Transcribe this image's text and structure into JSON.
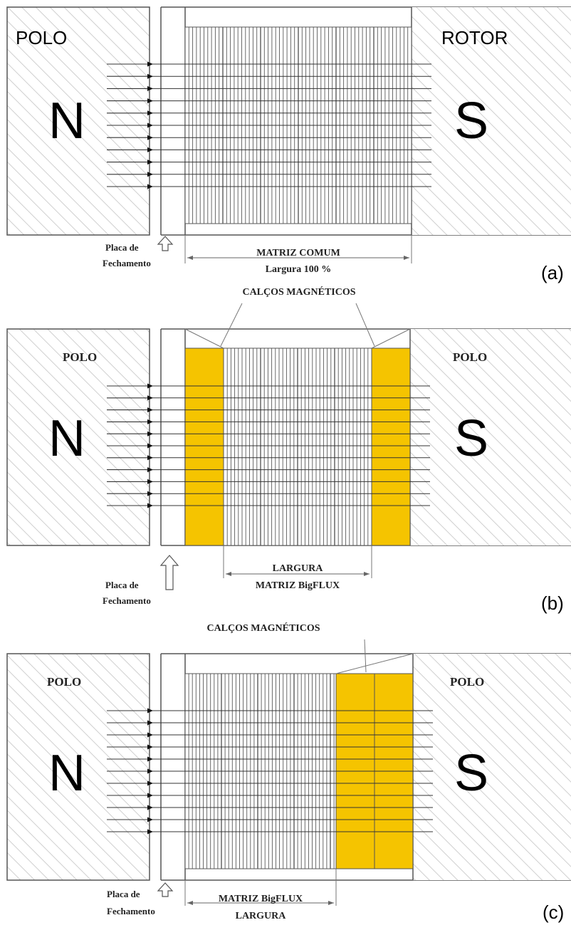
{
  "colors": {
    "pole_hatch": "#cccccc",
    "matrix_lines": "#555555",
    "magnetic_wedge": "#f5c400",
    "outline": "#555555",
    "text": "#000000"
  },
  "panels": [
    {
      "id": "a",
      "panel_label": "(a)",
      "left_pole_label": "POLO",
      "right_pole_label": "ROTOR",
      "left_pole_letter": "N",
      "right_pole_letter": "S",
      "closing_plate_label_line1": "Placa de",
      "closing_plate_label_line2": "Fechamento",
      "width_label_line1": "MATRIZ COMUM",
      "width_label_line2": "Largura 100 %",
      "wedges_label": "",
      "wedge_layout": "none"
    },
    {
      "id": "b",
      "panel_label": "(b)",
      "left_pole_label": "POLO",
      "right_pole_label": "POLO",
      "left_pole_letter": "N",
      "right_pole_letter": "S",
      "closing_plate_label_line1": "Placa de",
      "closing_plate_label_line2": "Fechamento",
      "width_label_line1": "LARGURA",
      "width_label_line2": "MATRIZ BigFLUX",
      "wedges_label": "CALÇOS MAGNÉTICOS",
      "wedge_layout": "both-sides"
    },
    {
      "id": "c",
      "panel_label": "(c)",
      "left_pole_label": "POLO",
      "right_pole_label": "POLO",
      "left_pole_letter": "N",
      "right_pole_letter": "S",
      "closing_plate_label_line1": "Placa de",
      "closing_plate_label_line2": "Fechamento",
      "width_label_line1": "MATRIZ BigFLUX",
      "width_label_line2": "LARGURA",
      "wedges_label": "CALÇOS MAGNÉTICOS",
      "wedge_layout": "right-side"
    }
  ]
}
